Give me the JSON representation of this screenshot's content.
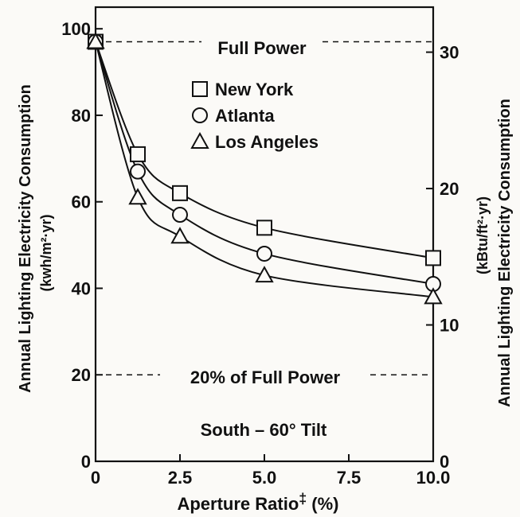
{
  "chart_data": {
    "type": "scatter",
    "title": "",
    "xlabel": "Aperture Ratio",
    "xlabel_mark": "‡",
    "xlabel_unit": "(%)",
    "ylabel_left_1": "Annual Lighting Electricity Consumption",
    "ylabel_left_2": "(kwh/m²·yr)",
    "ylabel_right_1": "Annual Lighting Electricity Consumption",
    "ylabel_right_2": "(kBtu/ft²·yr)",
    "xlim": [
      0,
      10
    ],
    "ylim": [
      0,
      105
    ],
    "y2lim": [
      0,
      33.3
    ],
    "x_ticks": [
      "0",
      "2.5",
      "5.0",
      "7.5",
      "10.0"
    ],
    "y_ticks": [
      "0",
      "20",
      "40",
      "60",
      "80",
      "100"
    ],
    "y2_ticks": [
      "0",
      "10",
      "20",
      "30"
    ],
    "grid": false,
    "legend_position": "top-right",
    "series": [
      {
        "name": "New York",
        "marker": "square",
        "x": [
          0,
          1.25,
          2.5,
          5.0,
          10.0
        ],
        "y": [
          97,
          71,
          62,
          54,
          47
        ]
      },
      {
        "name": "Atlanta",
        "marker": "circle",
        "x": [
          0,
          1.25,
          2.5,
          5.0,
          10.0
        ],
        "y": [
          97,
          67,
          57,
          48,
          41
        ]
      },
      {
        "name": "Los Angeles",
        "marker": "triangle",
        "x": [
          0,
          1.25,
          2.5,
          5.0,
          10.0
        ],
        "y": [
          97,
          61,
          52,
          43,
          38
        ]
      }
    ],
    "reference_lines": [
      {
        "y": 97,
        "label": "Full Power"
      },
      {
        "y": 20,
        "label": "20% of Full Power"
      }
    ],
    "annotation": "South – 60° Tilt"
  }
}
